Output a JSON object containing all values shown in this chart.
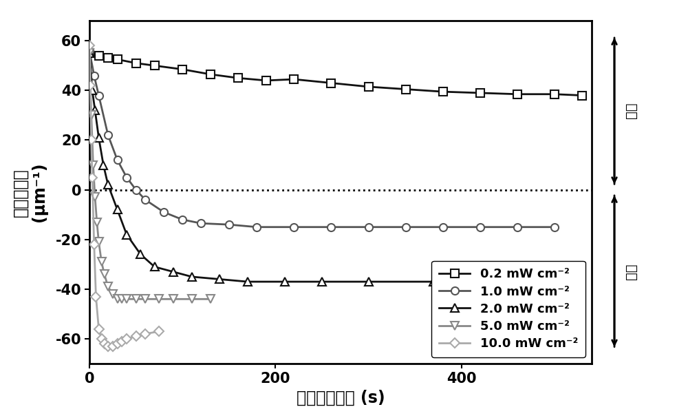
{
  "title": "",
  "xlabel": "紫外辐照时间 (s)",
  "ylabel_line1": "螈旋扈曲力",
  "ylabel_line2": "(μm⁻¹)",
  "xlim": [
    0,
    540
  ],
  "ylim": [
    -70,
    68
  ],
  "yticks": [
    -60,
    -40,
    -20,
    0,
    20,
    40,
    60
  ],
  "xticks": [
    0,
    200,
    400
  ],
  "right_label_top": "右旋",
  "right_label_bottom": "左旋",
  "series": [
    {
      "label": "0.2 mW cm⁻²",
      "color": "#111111",
      "marker": "s",
      "markersize": 8,
      "linewidth": 2.0,
      "markerfacecolor": "white",
      "x": [
        0,
        10,
        20,
        30,
        50,
        70,
        100,
        130,
        160,
        190,
        220,
        260,
        300,
        340,
        380,
        420,
        460,
        500,
        530
      ],
      "y": [
        55,
        54,
        53,
        52.5,
        51,
        50,
        48.5,
        46.5,
        45,
        44,
        44.5,
        43,
        41.5,
        40.5,
        39.5,
        39,
        38.5,
        38.5,
        38
      ]
    },
    {
      "label": "1.0 mW cm⁻²",
      "color": "#555555",
      "marker": "o",
      "markersize": 8,
      "linewidth": 2.0,
      "markerfacecolor": "white",
      "x": [
        0,
        5,
        10,
        20,
        30,
        40,
        50,
        60,
        80,
        100,
        120,
        150,
        180,
        220,
        260,
        300,
        340,
        380,
        420,
        460,
        500
      ],
      "y": [
        56,
        46,
        38,
        22,
        12,
        5,
        0,
        -4,
        -9,
        -12,
        -13.5,
        -14,
        -15,
        -15,
        -15,
        -15,
        -15,
        -15,
        -15,
        -15,
        -15
      ]
    },
    {
      "label": "2.0 mW cm⁻²",
      "color": "#111111",
      "marker": "^",
      "markersize": 8,
      "linewidth": 2.0,
      "markerfacecolor": "white",
      "x": [
        0,
        3,
        6,
        10,
        15,
        20,
        30,
        40,
        55,
        70,
        90,
        110,
        140,
        170,
        210,
        250,
        300,
        370,
        440
      ],
      "y": [
        55,
        40,
        32,
        21,
        10,
        2,
        -8,
        -18,
        -26,
        -31,
        -33,
        -35,
        -36,
        -37,
        -37,
        -37,
        -37,
        -37,
        -37
      ]
    },
    {
      "label": "5.0 mW cm⁻²",
      "color": "#888888",
      "marker": "v",
      "markersize": 8,
      "linewidth": 2.0,
      "markerfacecolor": "white",
      "x": [
        0,
        2,
        4,
        6,
        8,
        10,
        13,
        16,
        20,
        25,
        30,
        35,
        40,
        50,
        60,
        75,
        90,
        110,
        130
      ],
      "y": [
        55,
        30,
        10,
        -3,
        -13,
        -21,
        -29,
        -34,
        -39,
        -42,
        -44,
        -44,
        -44,
        -44,
        -44,
        -44,
        -44,
        -44,
        -44
      ]
    },
    {
      "label": "10.0 mW cm⁻²",
      "color": "#aaaaaa",
      "marker": "D",
      "markersize": 7,
      "linewidth": 2.0,
      "markerfacecolor": "white",
      "x": [
        0,
        1,
        2,
        3,
        5,
        7,
        10,
        13,
        16,
        20,
        25,
        30,
        35,
        40,
        50,
        60,
        75
      ],
      "y": [
        58,
        42,
        20,
        5,
        -22,
        -43,
        -56,
        -60,
        -62,
        -63,
        -63,
        -62,
        -61,
        -60,
        -59,
        -58,
        -57
      ]
    }
  ],
  "background_color": "#ffffff",
  "fontsize_label": 17,
  "fontsize_tick": 15,
  "fontsize_legend": 13
}
